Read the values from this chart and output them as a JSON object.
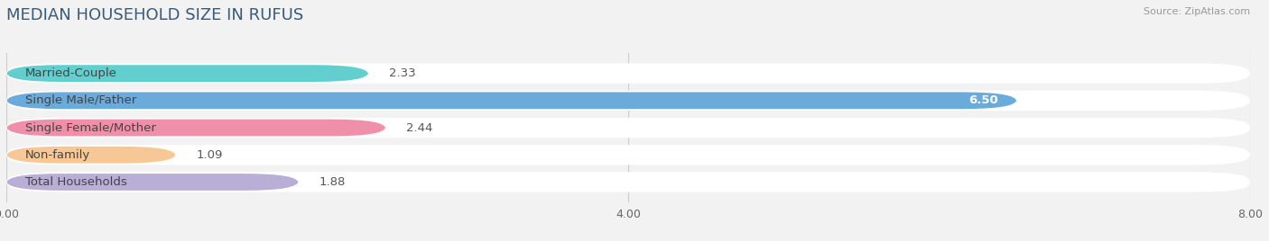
{
  "title": "MEDIAN HOUSEHOLD SIZE IN RUFUS",
  "source": "Source: ZipAtlas.com",
  "categories": [
    "Married-Couple",
    "Single Male/Father",
    "Single Female/Mother",
    "Non-family",
    "Total Households"
  ],
  "values": [
    2.33,
    6.5,
    2.44,
    1.09,
    1.88
  ],
  "bar_colors": [
    "#62cece",
    "#6aabdc",
    "#f08faa",
    "#f7c896",
    "#b9aed6"
  ],
  "value_inside": [
    false,
    true,
    false,
    false,
    false
  ],
  "xlim": [
    0,
    8.0
  ],
  "xticks": [
    0.0,
    4.0,
    8.0
  ],
  "xtick_labels": [
    "0.00",
    "4.00",
    "8.00"
  ],
  "background_color": "#f2f2f2",
  "bar_bg_color": "#ffffff",
  "title_fontsize": 13,
  "label_fontsize": 9.5,
  "value_fontsize": 9.5,
  "bar_height": 0.62,
  "figsize": [
    14.06,
    2.68
  ],
  "dpi": 100
}
